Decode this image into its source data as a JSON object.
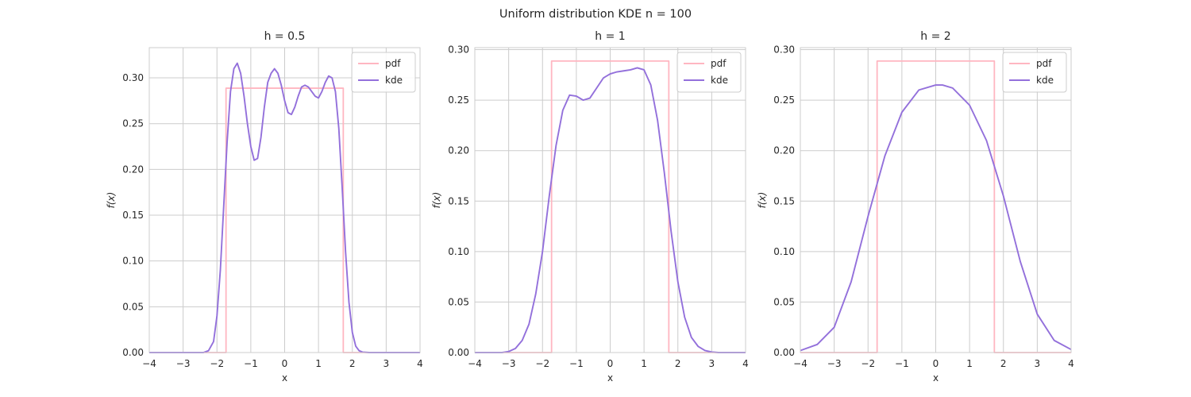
{
  "figure": {
    "title": "Uniform distribution KDE n = 100"
  },
  "colors": {
    "pdf": "#ffb6c1",
    "kde": "#9370db",
    "grid": "#cccccc",
    "frame": "#cccccc",
    "text": "#262626"
  },
  "chart_data": [
    {
      "type": "line",
      "title": "h = 0.5",
      "xlabel": "x",
      "ylabel": "f(x)",
      "xlim": [
        -4,
        4
      ],
      "ylim": [
        0,
        0.333
      ],
      "xticks": [
        -4,
        -3,
        -2,
        -1,
        0,
        1,
        2,
        3,
        4
      ],
      "xticklabels": [
        "−4",
        "−3",
        "−2",
        "−1",
        "0",
        "1",
        "2",
        "3",
        "4"
      ],
      "yticks": [
        0,
        0.05,
        0.1,
        0.15,
        0.2,
        0.25,
        0.3
      ],
      "yticklabels": [
        "0.00",
        "0.05",
        "0.10",
        "0.15",
        "0.20",
        "0.25",
        "0.30"
      ],
      "grid": true,
      "legend": "top-right",
      "series": [
        {
          "name": "pdf",
          "x": [
            -4,
            -1.732,
            -1.732,
            1.732,
            1.732,
            4
          ],
          "y": [
            0,
            0,
            0.2887,
            0.2887,
            0,
            0
          ]
        },
        {
          "name": "kde",
          "x": [
            -4,
            -2.4,
            -2.25,
            -2.1,
            -2.0,
            -1.9,
            -1.8,
            -1.7,
            -1.6,
            -1.5,
            -1.4,
            -1.3,
            -1.2,
            -1.1,
            -1.0,
            -0.9,
            -0.8,
            -0.7,
            -0.6,
            -0.5,
            -0.4,
            -0.3,
            -0.2,
            -0.1,
            0.0,
            0.1,
            0.2,
            0.3,
            0.4,
            0.5,
            0.6,
            0.7,
            0.8,
            0.9,
            1.0,
            1.1,
            1.2,
            1.3,
            1.4,
            1.5,
            1.6,
            1.7,
            1.8,
            1.9,
            2.0,
            2.1,
            2.2,
            2.3,
            2.5,
            4
          ],
          "y": [
            0,
            0,
            0.002,
            0.012,
            0.04,
            0.09,
            0.16,
            0.23,
            0.285,
            0.31,
            0.316,
            0.305,
            0.28,
            0.25,
            0.225,
            0.21,
            0.212,
            0.235,
            0.268,
            0.295,
            0.305,
            0.31,
            0.305,
            0.292,
            0.275,
            0.262,
            0.26,
            0.268,
            0.28,
            0.29,
            0.292,
            0.29,
            0.285,
            0.28,
            0.278,
            0.285,
            0.295,
            0.302,
            0.3,
            0.285,
            0.245,
            0.18,
            0.11,
            0.055,
            0.022,
            0.007,
            0.002,
            0.0005,
            0,
            0
          ]
        }
      ]
    },
    {
      "type": "line",
      "title": "h = 1",
      "xlabel": "x",
      "ylabel": "f(x)",
      "xlim": [
        -4,
        4
      ],
      "ylim": [
        0,
        0.302
      ],
      "xticks": [
        -4,
        -3,
        -2,
        -1,
        0,
        1,
        2,
        3,
        4
      ],
      "xticklabels": [
        "−4",
        "−3",
        "−2",
        "−1",
        "0",
        "1",
        "2",
        "3",
        "4"
      ],
      "yticks": [
        0,
        0.05,
        0.1,
        0.15,
        0.2,
        0.25,
        0.3
      ],
      "yticklabels": [
        "0.00",
        "0.05",
        "0.10",
        "0.15",
        "0.20",
        "0.25",
        "0.30"
      ],
      "grid": true,
      "legend": "top-right",
      "series": [
        {
          "name": "pdf",
          "x": [
            -4,
            -1.732,
            -1.732,
            1.732,
            1.732,
            4
          ],
          "y": [
            0,
            0,
            0.2887,
            0.2887,
            0,
            0
          ]
        },
        {
          "name": "kde",
          "x": [
            -4,
            -3.2,
            -3.0,
            -2.8,
            -2.6,
            -2.4,
            -2.2,
            -2.0,
            -1.8,
            -1.6,
            -1.4,
            -1.2,
            -1.0,
            -0.8,
            -0.6,
            -0.4,
            -0.2,
            0.0,
            0.2,
            0.4,
            0.6,
            0.8,
            1.0,
            1.2,
            1.4,
            1.6,
            1.8,
            2.0,
            2.2,
            2.4,
            2.6,
            2.8,
            3.0,
            3.2,
            4
          ],
          "y": [
            0,
            0,
            0.001,
            0.004,
            0.012,
            0.028,
            0.058,
            0.1,
            0.155,
            0.205,
            0.24,
            0.255,
            0.254,
            0.25,
            0.252,
            0.262,
            0.272,
            0.276,
            0.278,
            0.279,
            0.28,
            0.282,
            0.28,
            0.265,
            0.23,
            0.178,
            0.12,
            0.07,
            0.035,
            0.015,
            0.006,
            0.002,
            0.0005,
            0,
            0
          ]
        }
      ]
    },
    {
      "type": "line",
      "title": "h = 2",
      "xlabel": "x",
      "ylabel": "f(x)",
      "xlim": [
        -4,
        4
      ],
      "ylim": [
        0,
        0.302
      ],
      "xticks": [
        -4,
        -3,
        -2,
        -1,
        0,
        1,
        2,
        3,
        4
      ],
      "xticklabels": [
        "−4",
        "−3",
        "−2",
        "−1",
        "0",
        "1",
        "2",
        "3",
        "4"
      ],
      "yticks": [
        0,
        0.05,
        0.1,
        0.15,
        0.2,
        0.25,
        0.3
      ],
      "yticklabels": [
        "0.00",
        "0.05",
        "0.10",
        "0.15",
        "0.20",
        "0.25",
        "0.30"
      ],
      "grid": true,
      "legend": "top-right",
      "series": [
        {
          "name": "pdf",
          "x": [
            -4,
            -1.732,
            -1.732,
            1.732,
            1.732,
            4
          ],
          "y": [
            0,
            0,
            0.2887,
            0.2887,
            0,
            0
          ]
        },
        {
          "name": "kde",
          "x": [
            -4.0,
            -3.5,
            -3.0,
            -2.5,
            -2.0,
            -1.5,
            -1.0,
            -0.5,
            0.0,
            0.2,
            0.5,
            1.0,
            1.5,
            2.0,
            2.5,
            3.0,
            3.5,
            4.0
          ],
          "y": [
            0.002,
            0.008,
            0.025,
            0.07,
            0.135,
            0.195,
            0.238,
            0.26,
            0.265,
            0.265,
            0.262,
            0.245,
            0.21,
            0.155,
            0.09,
            0.038,
            0.012,
            0.003
          ]
        }
      ]
    }
  ]
}
